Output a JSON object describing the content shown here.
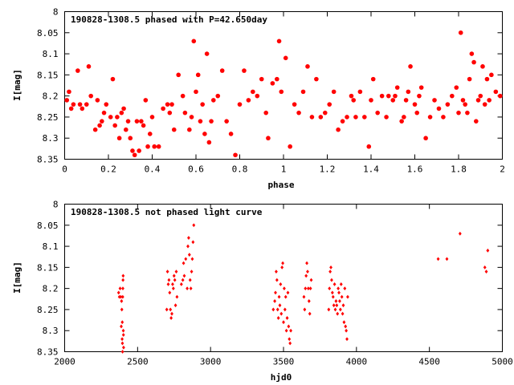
{
  "chart_data": [
    {
      "type": "scatter",
      "title": "190828-1308.5 phased with P=42.650day",
      "xlabel": "phase",
      "ylabel": "I[mag]",
      "xlim": [
        0,
        2
      ],
      "ylim": [
        8.35,
        8
      ],
      "y_inverted": true,
      "xticks": [
        "0",
        "0.2",
        "0.4",
        "0.6",
        "0.8",
        "1",
        "1.2",
        "1.4",
        "1.6",
        "1.8",
        "2"
      ],
      "yticks": [
        "8",
        "8.05",
        "8.1",
        "8.15",
        "8.2",
        "8.25",
        "8.3",
        "8.35"
      ],
      "marker_color": "#ff0000",
      "marker": "filled-circle-large",
      "grid": false,
      "points": [
        [
          0.01,
          8.21
        ],
        [
          0.02,
          8.19
        ],
        [
          0.03,
          8.23
        ],
        [
          0.04,
          8.22
        ],
        [
          0.06,
          8.14
        ],
        [
          0.07,
          8.22
        ],
        [
          0.08,
          8.23
        ],
        [
          0.1,
          8.22
        ],
        [
          0.11,
          8.13
        ],
        [
          0.12,
          8.2
        ],
        [
          0.14,
          8.28
        ],
        [
          0.15,
          8.21
        ],
        [
          0.16,
          8.27
        ],
        [
          0.17,
          8.26
        ],
        [
          0.18,
          8.24
        ],
        [
          0.19,
          8.22
        ],
        [
          0.21,
          8.25
        ],
        [
          0.22,
          8.16
        ],
        [
          0.23,
          8.27
        ],
        [
          0.24,
          8.25
        ],
        [
          0.25,
          8.3
        ],
        [
          0.26,
          8.24
        ],
        [
          0.27,
          8.23
        ],
        [
          0.28,
          8.28
        ],
        [
          0.29,
          8.26
        ],
        [
          0.3,
          8.3
        ],
        [
          0.31,
          8.33
        ],
        [
          0.32,
          8.34
        ],
        [
          0.33,
          8.26
        ],
        [
          0.34,
          8.33
        ],
        [
          0.35,
          8.26
        ],
        [
          0.36,
          8.27
        ],
        [
          0.37,
          8.21
        ],
        [
          0.38,
          8.32
        ],
        [
          0.39,
          8.29
        ],
        [
          0.4,
          8.25
        ],
        [
          0.41,
          8.32
        ],
        [
          0.43,
          8.32
        ],
        [
          0.45,
          8.23
        ],
        [
          0.47,
          8.22
        ],
        [
          0.48,
          8.24
        ],
        [
          0.49,
          8.22
        ],
        [
          0.5,
          8.28
        ],
        [
          0.52,
          8.15
        ],
        [
          0.54,
          8.2
        ],
        [
          0.55,
          8.24
        ],
        [
          0.57,
          8.28
        ],
        [
          0.58,
          8.25
        ],
        [
          0.59,
          8.07
        ],
        [
          0.6,
          8.19
        ],
        [
          0.61,
          8.15
        ],
        [
          0.62,
          8.26
        ],
        [
          0.63,
          8.22
        ],
        [
          0.64,
          8.29
        ],
        [
          0.65,
          8.1
        ],
        [
          0.66,
          8.31
        ],
        [
          0.67,
          8.26
        ],
        [
          0.68,
          8.21
        ],
        [
          0.7,
          8.2
        ],
        [
          0.72,
          8.14
        ],
        [
          0.74,
          8.26
        ],
        [
          0.76,
          8.29
        ],
        [
          0.78,
          8.34
        ],
        [
          0.8,
          8.22
        ],
        [
          0.82,
          8.14
        ],
        [
          0.84,
          8.21
        ],
        [
          0.86,
          8.19
        ],
        [
          0.88,
          8.2
        ],
        [
          0.9,
          8.16
        ],
        [
          0.92,
          8.24
        ],
        [
          0.93,
          8.3
        ],
        [
          0.95,
          8.17
        ],
        [
          0.97,
          8.16
        ],
        [
          0.98,
          8.07
        ],
        [
          0.99,
          8.19
        ],
        [
          1.01,
          8.11
        ],
        [
          1.03,
          8.32
        ],
        [
          1.05,
          8.22
        ],
        [
          1.07,
          8.24
        ],
        [
          1.09,
          8.19
        ],
        [
          1.11,
          8.13
        ],
        [
          1.13,
          8.25
        ],
        [
          1.15,
          8.16
        ],
        [
          1.17,
          8.25
        ],
        [
          1.19,
          8.24
        ],
        [
          1.21,
          8.22
        ],
        [
          1.23,
          8.19
        ],
        [
          1.25,
          8.28
        ],
        [
          1.27,
          8.26
        ],
        [
          1.29,
          8.25
        ],
        [
          1.31,
          8.2
        ],
        [
          1.32,
          8.21
        ],
        [
          1.33,
          8.25
        ],
        [
          1.35,
          8.19
        ],
        [
          1.37,
          8.25
        ],
        [
          1.39,
          8.32
        ],
        [
          1.4,
          8.21
        ],
        [
          1.41,
          8.16
        ],
        [
          1.43,
          8.24
        ],
        [
          1.45,
          8.2
        ],
        [
          1.47,
          8.25
        ],
        [
          1.48,
          8.2
        ],
        [
          1.5,
          8.21
        ],
        [
          1.51,
          8.2
        ],
        [
          1.52,
          8.18
        ],
        [
          1.54,
          8.26
        ],
        [
          1.55,
          8.25
        ],
        [
          1.56,
          8.21
        ],
        [
          1.57,
          8.19
        ],
        [
          1.58,
          8.13
        ],
        [
          1.6,
          8.22
        ],
        [
          1.61,
          8.24
        ],
        [
          1.62,
          8.2
        ],
        [
          1.63,
          8.18
        ],
        [
          1.65,
          8.3
        ],
        [
          1.67,
          8.25
        ],
        [
          1.69,
          8.21
        ],
        [
          1.71,
          8.23
        ],
        [
          1.73,
          8.25
        ],
        [
          1.75,
          8.22
        ],
        [
          1.77,
          8.2
        ],
        [
          1.79,
          8.18
        ],
        [
          1.8,
          8.24
        ],
        [
          1.81,
          8.05
        ],
        [
          1.82,
          8.21
        ],
        [
          1.83,
          8.22
        ],
        [
          1.84,
          8.24
        ],
        [
          1.85,
          8.16
        ],
        [
          1.86,
          8.1
        ],
        [
          1.87,
          8.12
        ],
        [
          1.88,
          8.26
        ],
        [
          1.89,
          8.21
        ],
        [
          1.9,
          8.2
        ],
        [
          1.91,
          8.13
        ],
        [
          1.92,
          8.22
        ],
        [
          1.93,
          8.16
        ],
        [
          1.94,
          8.21
        ],
        [
          1.95,
          8.15
        ],
        [
          1.97,
          8.19
        ],
        [
          1.99,
          8.2
        ]
      ]
    },
    {
      "type": "scatter",
      "title": "190828-1308.5 not phased light curve",
      "xlabel": "hjd0",
      "ylabel": "I[mag]",
      "xlim": [
        2000,
        5000
      ],
      "ylim": [
        8.35,
        8
      ],
      "y_inverted": true,
      "xticks": [
        "2000",
        "2500",
        "3000",
        "3500",
        "4000",
        "4500",
        "5000"
      ],
      "yticks": [
        "8",
        "8.05",
        "8.1",
        "8.15",
        "8.2",
        "8.25",
        "8.3",
        "8.35"
      ],
      "marker_color": "#ff0000",
      "marker": "filled-diamond-small",
      "grid": false,
      "points": [
        [
          2370,
          8.21
        ],
        [
          2375,
          8.22
        ],
        [
          2380,
          8.2
        ],
        [
          2385,
          8.22
        ],
        [
          2388,
          8.29
        ],
        [
          2390,
          8.23
        ],
        [
          2392,
          8.25
        ],
        [
          2394,
          8.32
        ],
        [
          2395,
          8.28
        ],
        [
          2396,
          8.33
        ],
        [
          2397,
          8.35
        ],
        [
          2398,
          8.22
        ],
        [
          2399,
          8.2
        ],
        [
          2400,
          8.18
        ],
        [
          2401,
          8.17
        ],
        [
          2402,
          8.3
        ],
        [
          2403,
          8.31
        ],
        [
          2404,
          8.34
        ],
        [
          2700,
          8.25
        ],
        [
          2705,
          8.16
        ],
        [
          2710,
          8.19
        ],
        [
          2715,
          8.18
        ],
        [
          2720,
          8.21
        ],
        [
          2725,
          8.25
        ],
        [
          2730,
          8.27
        ],
        [
          2735,
          8.26
        ],
        [
          2740,
          8.19
        ],
        [
          2745,
          8.2
        ],
        [
          2750,
          8.17
        ],
        [
          2755,
          8.18
        ],
        [
          2760,
          8.24
        ],
        [
          2765,
          8.16
        ],
        [
          2770,
          8.22
        ],
        [
          2800,
          8.19
        ],
        [
          2810,
          8.18
        ],
        [
          2815,
          8.14
        ],
        [
          2820,
          8.17
        ],
        [
          2830,
          8.13
        ],
        [
          2840,
          8.2
        ],
        [
          2845,
          8.1
        ],
        [
          2850,
          8.08
        ],
        [
          2855,
          8.12
        ],
        [
          2860,
          8.18
        ],
        [
          2865,
          8.2
        ],
        [
          2870,
          8.16
        ],
        [
          2875,
          8.13
        ],
        [
          2880,
          8.09
        ],
        [
          2885,
          8.05
        ],
        [
          3430,
          8.25
        ],
        [
          3440,
          8.23
        ],
        [
          3445,
          8.21
        ],
        [
          3450,
          8.16
        ],
        [
          3455,
          8.18
        ],
        [
          3460,
          8.25
        ],
        [
          3465,
          8.27
        ],
        [
          3470,
          8.22
        ],
        [
          3475,
          8.24
        ],
        [
          3480,
          8.19
        ],
        [
          3485,
          8.26
        ],
        [
          3490,
          8.15
        ],
        [
          3495,
          8.14
        ],
        [
          3500,
          8.28
        ],
        [
          3505,
          8.2
        ],
        [
          3510,
          8.25
        ],
        [
          3515,
          8.22
        ],
        [
          3520,
          8.3
        ],
        [
          3525,
          8.27
        ],
        [
          3530,
          8.21
        ],
        [
          3535,
          8.29
        ],
        [
          3540,
          8.32
        ],
        [
          3545,
          8.33
        ],
        [
          3550,
          8.3
        ],
        [
          3640,
          8.22
        ],
        [
          3645,
          8.25
        ],
        [
          3650,
          8.2
        ],
        [
          3655,
          8.17
        ],
        [
          3660,
          8.14
        ],
        [
          3665,
          8.16
        ],
        [
          3670,
          8.2
        ],
        [
          3675,
          8.23
        ],
        [
          3680,
          8.26
        ],
        [
          3685,
          8.2
        ],
        [
          3690,
          8.18
        ],
        [
          3810,
          8.25
        ],
        [
          3815,
          8.2
        ],
        [
          3820,
          8.16
        ],
        [
          3825,
          8.15
        ],
        [
          3830,
          8.18
        ],
        [
          3835,
          8.21
        ],
        [
          3840,
          8.22
        ],
        [
          3845,
          8.24
        ],
        [
          3850,
          8.19
        ],
        [
          3855,
          8.25
        ],
        [
          3860,
          8.23
        ],
        [
          3865,
          8.24
        ],
        [
          3870,
          8.26
        ],
        [
          3875,
          8.2
        ],
        [
          3880,
          8.21
        ],
        [
          3885,
          8.23
        ],
        [
          3890,
          8.25
        ],
        [
          3895,
          8.19
        ],
        [
          3900,
          8.22
        ],
        [
          3905,
          8.26
        ],
        [
          3910,
          8.24
        ],
        [
          3915,
          8.28
        ],
        [
          3920,
          8.2
        ],
        [
          3925,
          8.29
        ],
        [
          3930,
          8.3
        ],
        [
          3935,
          8.32
        ],
        [
          3940,
          8.22
        ],
        [
          4560,
          8.13
        ],
        [
          4620,
          8.13
        ],
        [
          4710,
          8.07
        ],
        [
          4880,
          8.15
        ],
        [
          4890,
          8.16
        ],
        [
          4900,
          8.11
        ]
      ]
    }
  ]
}
